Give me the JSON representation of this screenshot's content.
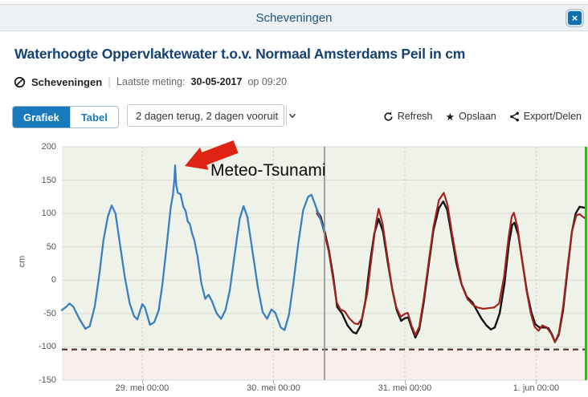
{
  "window": {
    "title": "Scheveningen",
    "close_label": "×"
  },
  "page": {
    "heading": "Waterhoogte Oppervlaktewater t.o.v. Normaal Amsterdams Peil in cm",
    "station": "Scheveningen",
    "divider": "|",
    "last_reading_label": "Laatste meting:",
    "last_reading_date": "30-05-2017",
    "last_reading_time": "op 09:20"
  },
  "toolbar": {
    "tab_graph": "Grafiek",
    "tab_table": "Tabel",
    "range_value": "2 dagen terug, 2 dagen vooruit",
    "refresh_label": "Refresh",
    "save_label": "Opslaan",
    "save_icon": "★",
    "export_label": "Export/Delen"
  },
  "annotation": {
    "label": "Meteo-Tsunami"
  },
  "chart_data": {
    "type": "line",
    "title": "Waterhoogte Oppervlaktewater t.o.v. Normaal Amsterdams Peil in cm",
    "ylabel": "cm",
    "ylim": [
      -150,
      200
    ],
    "yticks": [
      200,
      150,
      100,
      50,
      0,
      -50,
      -100,
      -150
    ],
    "xticklabels": [
      "29. mei 00:00",
      "30. mei 00:00",
      "31. mei 00:00",
      "1. jun 00:00"
    ],
    "x_day_tick_hours": [
      14.67,
      38.67,
      62.67,
      86.67
    ],
    "x_span_hours": 96,
    "now_hour": 48,
    "alarm_level_cm": -104,
    "grid": true,
    "legend": "none",
    "colors": {
      "bg_above_alarm": "#eef2e8",
      "bg_below_alarm": "#f8eeec",
      "grid_h": "#d8dad1",
      "grid_v": "#c6cac2",
      "alarm_line": "#533f35",
      "now_line": "#8f8f8f",
      "edge_line": "#3fae2a",
      "annotation_arrow": "#e02413"
    },
    "annotations": [
      {
        "text": "Meteo-Tsunami",
        "peak_hour": 20.7,
        "peak_cm": 172
      }
    ],
    "series": [
      {
        "id": "series-black",
        "color": "#141414",
        "width": 2.4,
        "points": [
          [
            46.6,
            104
          ],
          [
            47.3,
            95
          ],
          [
            48,
            74
          ],
          [
            48.8,
            45
          ],
          [
            49.6,
            5
          ],
          [
            50.3,
            -40
          ],
          [
            51.2,
            -50
          ],
          [
            52.2,
            -68
          ],
          [
            53.2,
            -78
          ],
          [
            53.8,
            -80
          ],
          [
            54.6,
            -68
          ],
          [
            55.5,
            -30
          ],
          [
            56.3,
            25
          ],
          [
            57.1,
            70
          ],
          [
            57.9,
            92
          ],
          [
            58.7,
            72
          ],
          [
            59.5,
            30
          ],
          [
            60.4,
            -15
          ],
          [
            61.2,
            -45
          ],
          [
            62,
            -61
          ],
          [
            62.7,
            -57
          ],
          [
            63.3,
            -56
          ],
          [
            64,
            -73
          ],
          [
            64.6,
            -86
          ],
          [
            65.3,
            -74
          ],
          [
            66.1,
            -35
          ],
          [
            67,
            20
          ],
          [
            67.9,
            75
          ],
          [
            68.9,
            108
          ],
          [
            69.7,
            118
          ],
          [
            70.4,
            106
          ],
          [
            71.2,
            68
          ],
          [
            72.1,
            25
          ],
          [
            73,
            -5
          ],
          [
            74,
            -25
          ],
          [
            75,
            -33
          ],
          [
            75.8,
            -45
          ],
          [
            76.7,
            -58
          ],
          [
            77.6,
            -68
          ],
          [
            78.4,
            -74
          ],
          [
            79.1,
            -71
          ],
          [
            80,
            -50
          ],
          [
            80.9,
            -5
          ],
          [
            81.7,
            55
          ],
          [
            82.3,
            83
          ],
          [
            82.7,
            86
          ],
          [
            83.4,
            68
          ],
          [
            84.2,
            25
          ],
          [
            85,
            -18
          ],
          [
            85.8,
            -48
          ],
          [
            86.5,
            -66
          ],
          [
            87.3,
            -71
          ],
          [
            88.2,
            -71
          ],
          [
            88.9,
            -72
          ],
          [
            89.6,
            -82
          ],
          [
            90.1,
            -93
          ],
          [
            90.8,
            -82
          ],
          [
            91.6,
            -45
          ],
          [
            92.4,
            15
          ],
          [
            93.2,
            72
          ],
          [
            93.9,
            100
          ],
          [
            94.6,
            110
          ],
          [
            95.3,
            109
          ],
          [
            95.8,
            108
          ]
        ]
      },
      {
        "id": "series-red",
        "color": "#a3231e",
        "width": 2.2,
        "points": [
          [
            46.6,
            100
          ],
          [
            47.3,
            91
          ],
          [
            48,
            70
          ],
          [
            48.8,
            42
          ],
          [
            49.6,
            0
          ],
          [
            50.2,
            -33
          ],
          [
            50.9,
            -44
          ],
          [
            51.7,
            -47
          ],
          [
            52.6,
            -58
          ],
          [
            53.5,
            -65
          ],
          [
            54.1,
            -66
          ],
          [
            54.9,
            -57
          ],
          [
            55.8,
            -20
          ],
          [
            56.6,
            35
          ],
          [
            57.4,
            85
          ],
          [
            57.9,
            107
          ],
          [
            58.6,
            85
          ],
          [
            59.4,
            40
          ],
          [
            60.3,
            -10
          ],
          [
            61.1,
            -40
          ],
          [
            61.9,
            -55
          ],
          [
            62.6,
            -51
          ],
          [
            63.2,
            -49
          ],
          [
            63.9,
            -68
          ],
          [
            64.6,
            -82
          ],
          [
            65.3,
            -70
          ],
          [
            66.1,
            -30
          ],
          [
            67,
            25
          ],
          [
            67.9,
            80
          ],
          [
            68.9,
            120
          ],
          [
            69.8,
            131
          ],
          [
            70.5,
            112
          ],
          [
            71.3,
            70
          ],
          [
            72.2,
            28
          ],
          [
            73.1,
            -8
          ],
          [
            74.1,
            -28
          ],
          [
            75.1,
            -37
          ],
          [
            76,
            -41
          ],
          [
            77,
            -43
          ],
          [
            78,
            -42
          ],
          [
            79,
            -41
          ],
          [
            79.9,
            -35
          ],
          [
            80.8,
            5
          ],
          [
            81.6,
            62
          ],
          [
            82.2,
            95
          ],
          [
            82.6,
            101
          ],
          [
            83.3,
            78
          ],
          [
            84.1,
            30
          ],
          [
            84.9,
            -15
          ],
          [
            85.7,
            -50
          ],
          [
            86.4,
            -70
          ],
          [
            87.1,
            -76
          ],
          [
            87.8,
            -68
          ],
          [
            88.6,
            -71
          ],
          [
            89.4,
            -80
          ],
          [
            90.1,
            -93
          ],
          [
            90.8,
            -80
          ],
          [
            91.6,
            -40
          ],
          [
            92.4,
            20
          ],
          [
            93.2,
            72
          ],
          [
            94,
            97
          ],
          [
            94.6,
            99
          ],
          [
            95.2,
            95
          ],
          [
            95.8,
            92
          ]
        ]
      },
      {
        "id": "series-blue",
        "color": "#3b7fc0",
        "width": 2.3,
        "points": [
          [
            0,
            -45
          ],
          [
            0.8,
            -40
          ],
          [
            1.4,
            -35
          ],
          [
            2.1,
            -40
          ],
          [
            3.2,
            -58
          ],
          [
            4.3,
            -73
          ],
          [
            5.1,
            -69
          ],
          [
            6,
            -40
          ],
          [
            6.8,
            5
          ],
          [
            7.6,
            60
          ],
          [
            8.4,
            95
          ],
          [
            9.1,
            112
          ],
          [
            9.8,
            100
          ],
          [
            10.6,
            55
          ],
          [
            11.5,
            5
          ],
          [
            12.4,
            -35
          ],
          [
            13.2,
            -54
          ],
          [
            13.8,
            -59
          ],
          [
            14.7,
            -36
          ],
          [
            15.2,
            -41
          ],
          [
            16.1,
            -67
          ],
          [
            16.9,
            -63
          ],
          [
            17.7,
            -45
          ],
          [
            18.4,
            -5
          ],
          [
            19.2,
            55
          ],
          [
            19.9,
            110
          ],
          [
            20.3,
            128
          ],
          [
            20.55,
            150
          ],
          [
            20.7,
            172
          ],
          [
            20.9,
            142
          ],
          [
            21.2,
            131
          ],
          [
            21.7,
            129
          ],
          [
            22.2,
            110
          ],
          [
            22.6,
            104
          ],
          [
            23,
            88
          ],
          [
            23.4,
            84
          ],
          [
            23.8,
            70
          ],
          [
            24.2,
            60
          ],
          [
            24.8,
            35
          ],
          [
            25.5,
            -5
          ],
          [
            26.2,
            -28
          ],
          [
            26.8,
            -22
          ],
          [
            27.4,
            -31
          ],
          [
            28.3,
            -50
          ],
          [
            29.1,
            -58
          ],
          [
            29.9,
            -45
          ],
          [
            30.7,
            -15
          ],
          [
            31.6,
            40
          ],
          [
            32.5,
            92
          ],
          [
            33.2,
            111
          ],
          [
            33.9,
            95
          ],
          [
            34.8,
            45
          ],
          [
            35.8,
            -10
          ],
          [
            36.7,
            -48
          ],
          [
            37.5,
            -58
          ],
          [
            38.3,
            -44
          ],
          [
            39,
            -49
          ],
          [
            40,
            -71
          ],
          [
            40.7,
            -75
          ],
          [
            41.5,
            -52
          ],
          [
            42.3,
            -5
          ],
          [
            43.2,
            55
          ],
          [
            44.1,
            105
          ],
          [
            45,
            125
          ],
          [
            45.6,
            128
          ],
          [
            46.3,
            113
          ],
          [
            47.1,
            95
          ],
          [
            48,
            73
          ]
        ]
      }
    ]
  }
}
